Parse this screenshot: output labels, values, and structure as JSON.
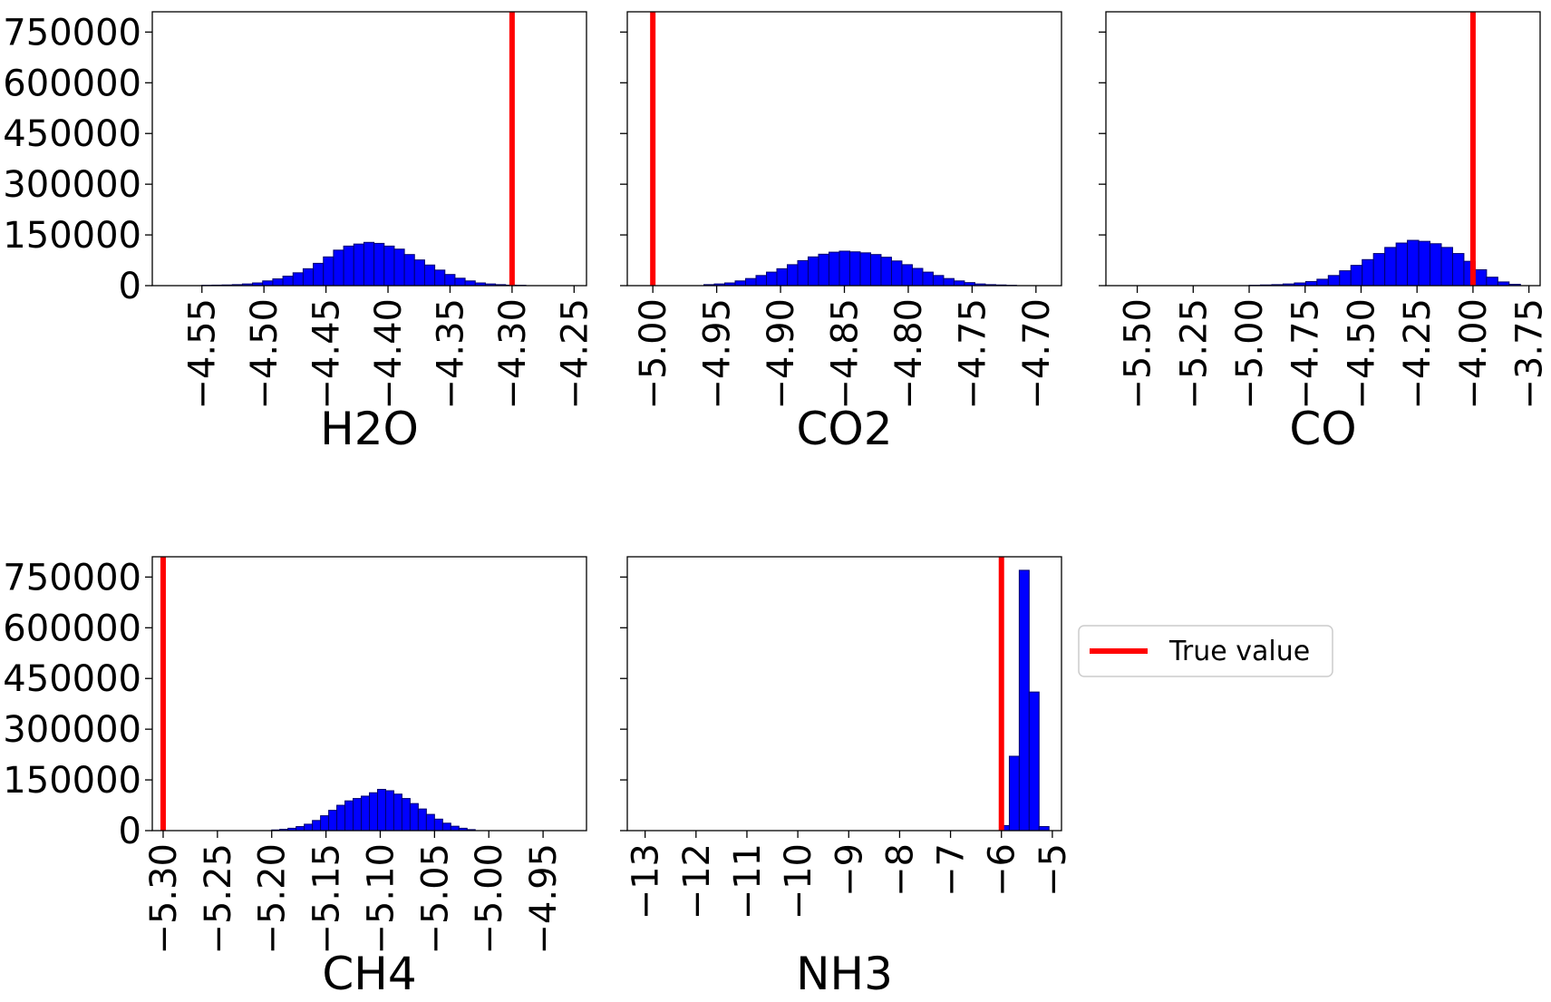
{
  "chart_data": [
    {
      "type": "bar",
      "xlabel": "H2O",
      "xlim": [
        -4.59,
        -4.24
      ],
      "ylim": [
        0,
        810000
      ],
      "xticks": [
        -4.55,
        -4.5,
        -4.45,
        -4.4,
        -4.35,
        -4.3,
        -4.25
      ],
      "xtick_labels": [
        "−4.55",
        "−4.50",
        "−4.45",
        "−4.40",
        "−4.35",
        "−4.30",
        "−4.25"
      ],
      "yticks": [
        0,
        150000,
        300000,
        450000,
        600000,
        750000
      ],
      "ytick_labels": [
        "0",
        "150000",
        "300000",
        "450000",
        "600000",
        "750000"
      ],
      "true_value": -4.3,
      "bin_start": -4.55,
      "bin_width": 0.00816,
      "values": [
        1000,
        1500,
        2000,
        3000,
        5000,
        8000,
        14000,
        20000,
        28000,
        38000,
        50000,
        66000,
        85000,
        105000,
        117000,
        123000,
        128000,
        125000,
        117000,
        108000,
        92000,
        76000,
        61000,
        46000,
        33000,
        22000,
        14000,
        8000,
        5000,
        3000,
        1500,
        1000
      ]
    },
    {
      "type": "bar",
      "xlabel": "CO2",
      "xlim": [
        -5.02,
        -4.68
      ],
      "ylim": [
        0,
        810000
      ],
      "xticks": [
        -5.0,
        -4.95,
        -4.9,
        -4.85,
        -4.8,
        -4.75,
        -4.7
      ],
      "xtick_labels": [
        "−5.00",
        "−4.95",
        "−4.90",
        "−4.85",
        "−4.80",
        "−4.75",
        "−4.70"
      ],
      "yticks": [
        0,
        150000,
        300000,
        450000,
        600000,
        750000
      ],
      "true_value": -5.0,
      "bin_start": -4.96,
      "bin_width": 0.00816,
      "values": [
        3000,
        5000,
        8000,
        14000,
        21000,
        30000,
        40000,
        50000,
        62000,
        74000,
        85000,
        93000,
        99000,
        102000,
        100000,
        97000,
        92000,
        84000,
        73000,
        62000,
        51000,
        40000,
        30000,
        21000,
        14000,
        9000,
        5000,
        3000,
        2000,
        1000
      ]
    },
    {
      "type": "bar",
      "xlabel": "CO",
      "xlim": [
        -5.64,
        -3.7
      ],
      "ylim": [
        0,
        810000
      ],
      "xticks": [
        -5.5,
        -5.25,
        -5.0,
        -4.75,
        -4.5,
        -4.25,
        -4.0,
        -3.75
      ],
      "xtick_labels": [
        "−5.50",
        "−5.25",
        "−5.00",
        "−4.75",
        "−4.50",
        "−4.25",
        "−4.00",
        "−3.75"
      ],
      "yticks": [
        0,
        150000,
        300000,
        450000,
        600000,
        750000
      ],
      "true_value": -4.0,
      "bin_start": -5.0,
      "bin_width": 0.0505,
      "values": [
        1000,
        2000,
        3000,
        5000,
        8000,
        12000,
        19000,
        30000,
        44000,
        60000,
        77000,
        95000,
        113000,
        126000,
        134000,
        131000,
        124000,
        113000,
        95000,
        72000,
        47000,
        25000,
        11000,
        4000
      ]
    },
    {
      "type": "bar",
      "xlabel": "CH4",
      "xlim": [
        -5.31,
        -4.91
      ],
      "ylim": [
        0,
        810000
      ],
      "xticks": [
        -5.3,
        -5.25,
        -5.2,
        -5.15,
        -5.1,
        -5.05,
        -5.0,
        -4.95
      ],
      "xtick_labels": [
        "−5.30",
        "−5.25",
        "−5.20",
        "−5.15",
        "−5.10",
        "−5.05",
        "−5.00",
        "−4.95"
      ],
      "yticks": [
        0,
        150000,
        300000,
        450000,
        600000,
        750000
      ],
      "ytick_labels": [
        "0",
        "150000",
        "300000",
        "450000",
        "600000",
        "750000"
      ],
      "true_value": -5.3,
      "bin_start": -5.2,
      "bin_width": 0.0075,
      "values": [
        2000,
        4000,
        7000,
        12000,
        19000,
        30000,
        44000,
        60000,
        75000,
        88000,
        95000,
        102000,
        112000,
        122000,
        118000,
        108000,
        95000,
        80000,
        64000,
        48000,
        34000,
        22000,
        13000,
        7000,
        3000
      ]
    },
    {
      "type": "bar",
      "xlabel": "NH3",
      "xlim": [
        -13.35,
        -4.82
      ],
      "ylim": [
        0,
        810000
      ],
      "xticks": [
        -13,
        -12,
        -11,
        -10,
        -9,
        -8,
        -7,
        -6,
        -5
      ],
      "xtick_labels": [
        "−13",
        "−12",
        "−11",
        "−10",
        "−9",
        "−8",
        "−7",
        "−6",
        "−5"
      ],
      "yticks": [
        0,
        150000,
        300000,
        450000,
        600000,
        750000
      ],
      "true_value": -6.0,
      "bin_start": -6.04,
      "bin_width": 0.195,
      "values": [
        15000,
        220000,
        770000,
        410000,
        12000
      ]
    }
  ],
  "legend": {
    "label": "True value",
    "placement": "center-right",
    "line_color": "#ff0000"
  },
  "colors": {
    "bar_fill": "#0000ff",
    "bar_edge": "#00006e",
    "true_line": "#ff0000"
  }
}
